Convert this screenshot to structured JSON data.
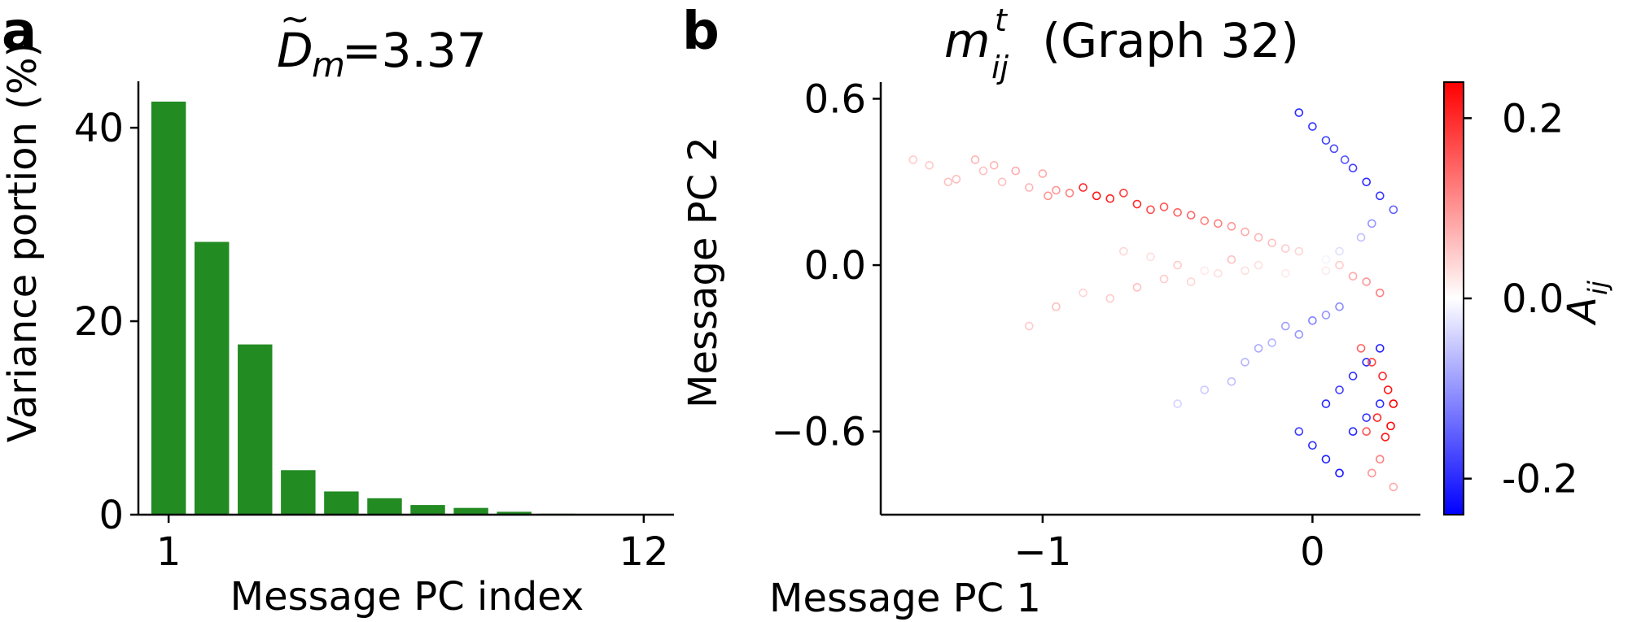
{
  "panels": {
    "a": {
      "label": "a"
    },
    "b": {
      "label": "b"
    }
  },
  "colorbar": {
    "label": "A",
    "label_sub": "ij",
    "ticks": [
      "0.2",
      "0.0",
      "-0.2"
    ],
    "tick_values": [
      0.2,
      0.0,
      -0.2
    ],
    "range": [
      -0.24,
      0.24
    ],
    "colormap": "bwr",
    "color_low": "#0000ff",
    "color_mid": "#ffffff",
    "color_high": "#ff0000"
  },
  "chart_data": [
    {
      "type": "bar",
      "title_prefix": "D",
      "title_sub": "m",
      "title_value": "=3.37",
      "xlabel": "Message PC index",
      "ylabel": "Variance portion (%)",
      "categories": [
        1,
        2,
        3,
        4,
        5,
        6,
        7,
        8,
        9,
        10,
        11,
        12
      ],
      "values": [
        42.7,
        28.2,
        17.6,
        4.6,
        2.4,
        1.7,
        1.0,
        0.7,
        0.3,
        0.1,
        0.05,
        0.02
      ],
      "bar_color": "#228b22",
      "xticks": [
        "1",
        "12"
      ],
      "xtick_values": [
        1,
        12
      ],
      "yticks": [
        "0",
        "20",
        "40"
      ],
      "ytick_values": [
        0,
        20,
        40
      ],
      "xlim": [
        0.3,
        12.7
      ],
      "ylim": [
        0,
        44.8
      ],
      "grid": false
    },
    {
      "type": "scatter",
      "title_var": "m",
      "title_sup": "t",
      "title_sub": "ij",
      "title_rest": " (Graph 32)",
      "xlabel": "Message PC 1",
      "ylabel": "Message PC 2",
      "xticks": [
        "−1",
        "0"
      ],
      "xtick_values": [
        -1,
        0
      ],
      "yticks": [
        "0.6",
        "0.0",
        "−0.6"
      ],
      "ytick_values": [
        0.6,
        0.0,
        -0.6
      ],
      "xlim": [
        -1.6,
        0.4
      ],
      "ylim": [
        -0.9,
        0.66
      ],
      "marker": "hollow circle",
      "color_by": "A_ij",
      "grid": false,
      "series": [
        {
          "x": [
            -1.48,
            -1.42,
            -1.35,
            -1.32,
            -1.25,
            -1.22,
            -1.18,
            -1.15,
            -1.1,
            -1.05,
            -1.0,
            -0.98,
            -0.95,
            -0.9
          ],
          "y": [
            0.38,
            0.36,
            0.3,
            0.31,
            0.38,
            0.34,
            0.36,
            0.3,
            0.34,
            0.28,
            0.33,
            0.25,
            0.27,
            0.26
          ],
          "c": [
            0.05,
            0.05,
            0.06,
            0.06,
            0.07,
            0.06,
            0.07,
            0.06,
            0.08,
            0.07,
            0.08,
            0.1,
            0.1,
            0.12
          ]
        },
        {
          "x": [
            -0.85,
            -0.8,
            -0.75,
            -0.7,
            -0.65,
            -0.6,
            -0.55,
            -0.5,
            -0.45,
            -0.4,
            -0.35,
            -0.3,
            -0.25,
            -0.2,
            -0.15,
            -0.1,
            -0.05
          ],
          "y": [
            0.28,
            0.25,
            0.24,
            0.26,
            0.22,
            0.2,
            0.21,
            0.19,
            0.18,
            0.16,
            0.15,
            0.14,
            0.12,
            0.1,
            0.08,
            0.06,
            0.05
          ],
          "c": [
            0.2,
            0.22,
            0.21,
            0.18,
            0.2,
            0.17,
            0.16,
            0.15,
            0.14,
            0.12,
            0.12,
            0.1,
            0.08,
            0.07,
            0.06,
            0.05,
            0.04
          ]
        },
        {
          "x": [
            -0.7,
            -0.6,
            -0.5,
            -0.4,
            -0.3,
            -0.2,
            -0.1,
            0.0,
            0.05,
            0.1,
            0.15,
            0.2,
            0.25
          ],
          "y": [
            0.05,
            0.03,
            0.0,
            -0.02,
            0.02,
            0.0,
            -0.03,
            -0.05,
            -0.02,
            0.0,
            -0.04,
            -0.06,
            -0.1
          ],
          "c": [
            0.04,
            0.03,
            0.05,
            0.02,
            0.06,
            0.03,
            0.02,
            0.0,
            0.02,
            0.05,
            0.08,
            0.1,
            0.12
          ]
        },
        {
          "x": [
            -1.05,
            -0.95,
            -0.85,
            -0.75,
            -0.65,
            -0.55,
            -0.45,
            -0.35,
            -0.25
          ],
          "y": [
            -0.22,
            -0.15,
            -0.1,
            -0.12,
            -0.08,
            -0.05,
            -0.06,
            -0.03,
            -0.02
          ],
          "c": [
            0.05,
            0.06,
            0.04,
            0.05,
            0.06,
            0.05,
            0.04,
            0.03,
            0.03
          ]
        },
        {
          "x": [
            -0.5,
            -0.4,
            -0.3,
            -0.25,
            -0.2,
            -0.15,
            -0.1,
            -0.05,
            0.0,
            0.05,
            0.1
          ],
          "y": [
            -0.5,
            -0.45,
            -0.42,
            -0.35,
            -0.3,
            -0.28,
            -0.22,
            -0.25,
            -0.2,
            -0.18,
            -0.15
          ],
          "c": [
            -0.04,
            -0.05,
            -0.06,
            -0.07,
            -0.08,
            -0.07,
            -0.09,
            -0.1,
            -0.12,
            -0.1,
            -0.11
          ]
        },
        {
          "x": [
            -0.05,
            0.0,
            0.05,
            0.1,
            0.15,
            0.2,
            0.25,
            0.1,
            0.05,
            0.15,
            0.2,
            0.25
          ],
          "y": [
            -0.6,
            -0.65,
            -0.7,
            -0.75,
            -0.6,
            -0.55,
            -0.5,
            -0.45,
            -0.5,
            -0.4,
            -0.35,
            -0.3
          ],
          "c": [
            -0.18,
            -0.2,
            -0.21,
            -0.22,
            -0.2,
            -0.19,
            -0.2,
            -0.18,
            -0.2,
            -0.19,
            -0.2,
            -0.21
          ]
        },
        {
          "x": [
            0.18,
            0.22,
            0.26,
            0.28,
            0.3,
            0.24,
            0.2,
            0.27,
            0.29,
            0.25,
            0.22,
            0.3
          ],
          "y": [
            -0.3,
            -0.35,
            -0.4,
            -0.45,
            -0.5,
            -0.55,
            -0.6,
            -0.62,
            -0.58,
            -0.7,
            -0.75,
            -0.8
          ],
          "c": [
            0.15,
            0.18,
            0.2,
            0.22,
            0.24,
            0.2,
            0.16,
            0.22,
            0.24,
            0.12,
            0.1,
            0.08
          ]
        },
        {
          "x": [
            -0.05,
            0.0,
            0.05,
            0.08,
            0.12,
            0.15,
            0.2,
            0.25,
            0.3,
            0.22,
            0.18,
            0.1,
            0.05
          ],
          "y": [
            0.55,
            0.5,
            0.45,
            0.42,
            0.38,
            0.35,
            0.3,
            0.25,
            0.2,
            0.15,
            0.1,
            0.05,
            0.02
          ],
          "c": [
            -0.2,
            -0.19,
            -0.18,
            -0.17,
            -0.16,
            -0.18,
            -0.2,
            -0.19,
            -0.15,
            -0.1,
            -0.06,
            -0.03,
            -0.01
          ]
        }
      ]
    }
  ]
}
